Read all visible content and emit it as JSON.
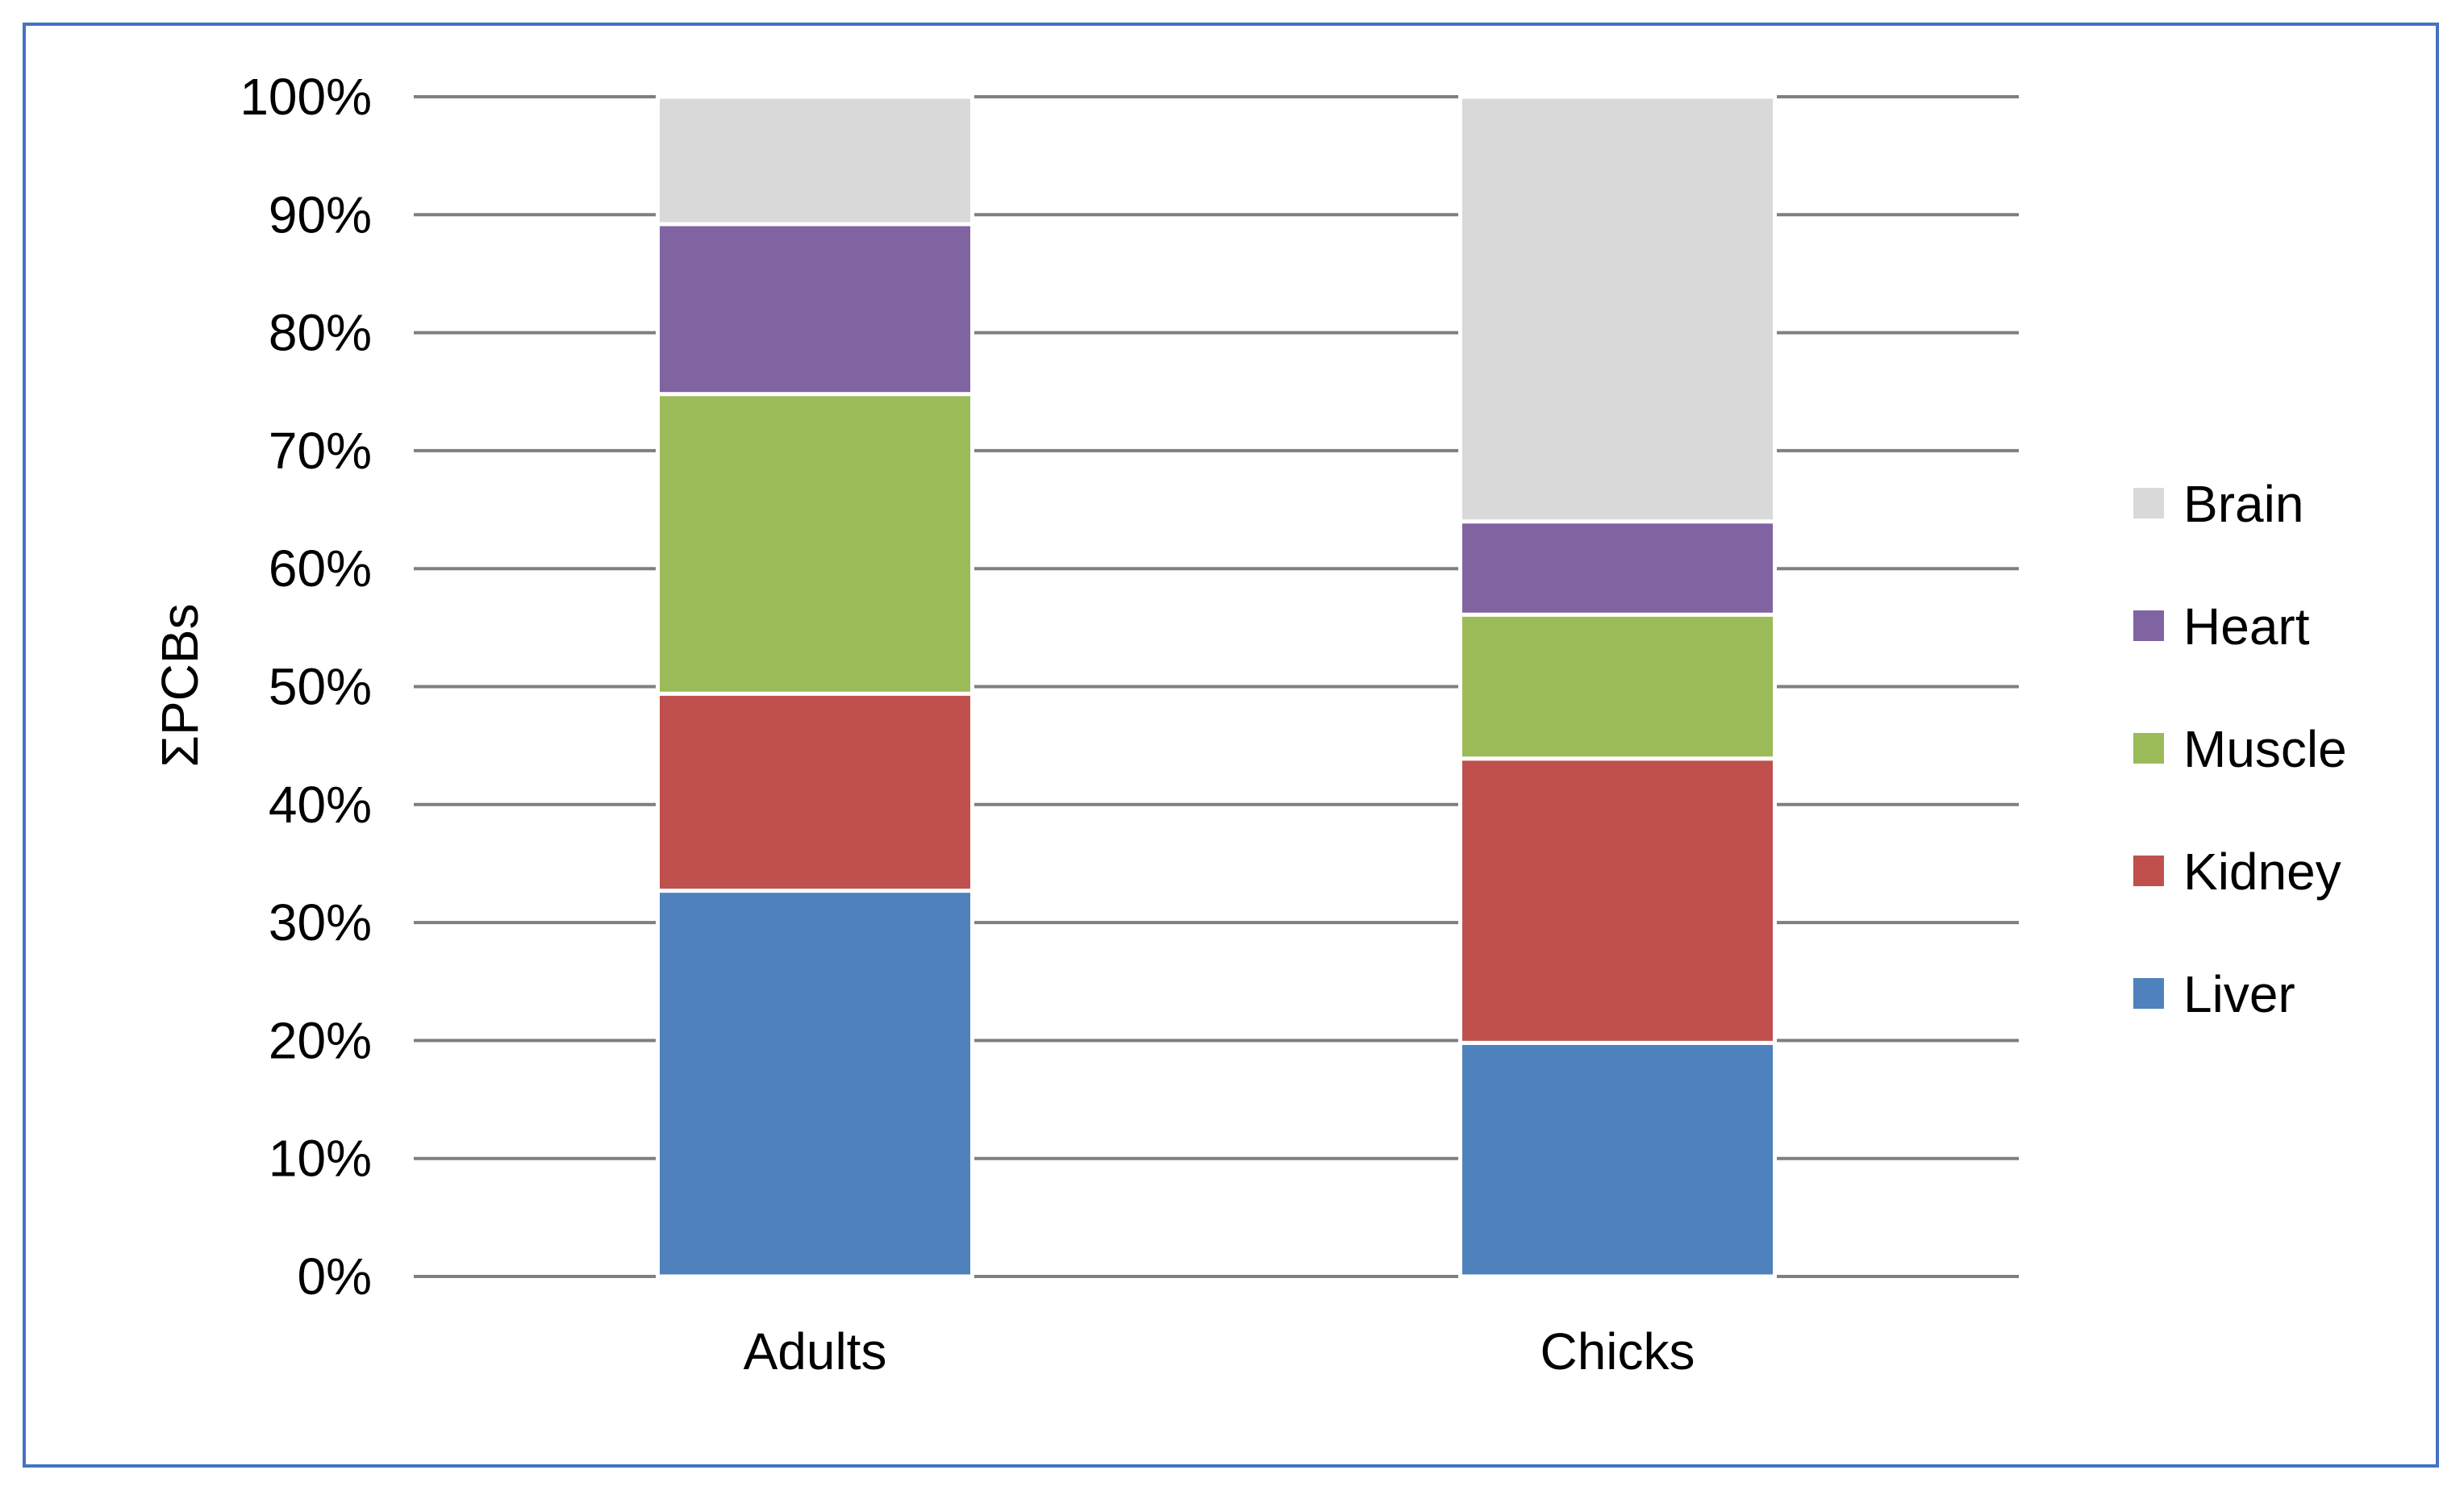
{
  "chart_data": {
    "type": "bar",
    "stacked": true,
    "categories": [
      "Adults",
      "Chicks"
    ],
    "ylabel": "ΣPCBs",
    "ylim": [
      0,
      100
    ],
    "yticks": [
      "0%",
      "10%",
      "20%",
      "30%",
      "40%",
      "50%",
      "60%",
      "70%",
      "80%",
      "90%",
      "100%"
    ],
    "grid": true,
    "legend_position": "right",
    "series": [
      {
        "name": "Liver",
        "color": "#4f81bd",
        "values": [
          32.7,
          19.8
        ]
      },
      {
        "name": "Kidney",
        "color": "#c0504d",
        "values": [
          16.7,
          24.1
        ]
      },
      {
        "name": "Muscle",
        "color": "#9bbb59",
        "values": [
          25.4,
          12.2
        ]
      },
      {
        "name": "Heart",
        "color": "#8064a2",
        "values": [
          14.4,
          7.9
        ]
      },
      {
        "name": "Brain",
        "color": "#d9d9d9",
        "values": [
          10.8,
          36.0
        ]
      }
    ]
  }
}
